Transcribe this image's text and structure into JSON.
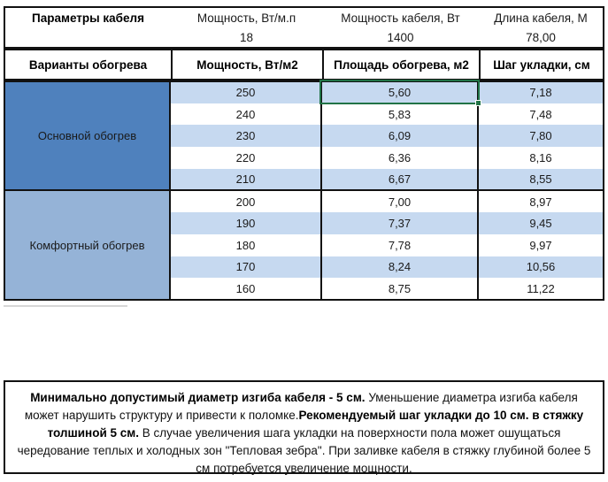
{
  "colors": {
    "dark_blue": "#4f81bd",
    "medium_blue": "#95b3d7",
    "stripe_blue": "#c6d9f0",
    "selection_green": "#217346",
    "border_black": "#111111"
  },
  "params_table": {
    "title": "Параметры кабеля",
    "columns": [
      {
        "label": "Мощность, Вт/м.п",
        "value": "18"
      },
      {
        "label": "Мощность кабеля, Вт",
        "value": "1400"
      },
      {
        "label": "Длина кабеля, М",
        "value": "78,00"
      }
    ]
  },
  "heating_table": {
    "headers": [
      "Варианты обогрева",
      "Мощность, Вт/м2",
      "Площадь обогрева, м2",
      "Шаг укладки, см"
    ],
    "groups": [
      {
        "label": "Основной обогрев",
        "rows": [
          [
            "250",
            "5,60",
            "7,18"
          ],
          [
            "240",
            "5,83",
            "7,48"
          ],
          [
            "230",
            "6,09",
            "7,80"
          ],
          [
            "220",
            "6,36",
            "8,16"
          ],
          [
            "210",
            "6,67",
            "8,55"
          ]
        ]
      },
      {
        "label": "Комфортный обогрев",
        "rows": [
          [
            "200",
            "7,00",
            "8,97"
          ],
          [
            "190",
            "7,37",
            "9,45"
          ],
          [
            "180",
            "7,78",
            "9,97"
          ],
          [
            "170",
            "8,24",
            "10,56"
          ],
          [
            "160",
            "8,75",
            "11,22"
          ]
        ]
      }
    ],
    "selected_cell": {
      "group": 0,
      "row": 0,
      "column": 1,
      "value": "5,60"
    }
  },
  "note": {
    "segments": [
      {
        "text": "Минимально допустимый диаметр изгиба кабеля - 5 см.",
        "bold": true
      },
      {
        "text": "  Уменьшение диаметра изгиба кабеля может нарушить структуру и привести к поломке.",
        "bold": false
      },
      {
        "text": "Рекомендуемый шаг укладки до 10 см. в стяжку толшиной 5 см.",
        "bold": true
      },
      {
        "text": " В  случае увеличения шага укладки на поверхности пола может ошущаться чередование теплых и холодных зон \"Тепловая зебра\". При заливке кабеля в стяжку глубиной более 5 см потребуется увеличение мощности.",
        "bold": false
      }
    ]
  }
}
